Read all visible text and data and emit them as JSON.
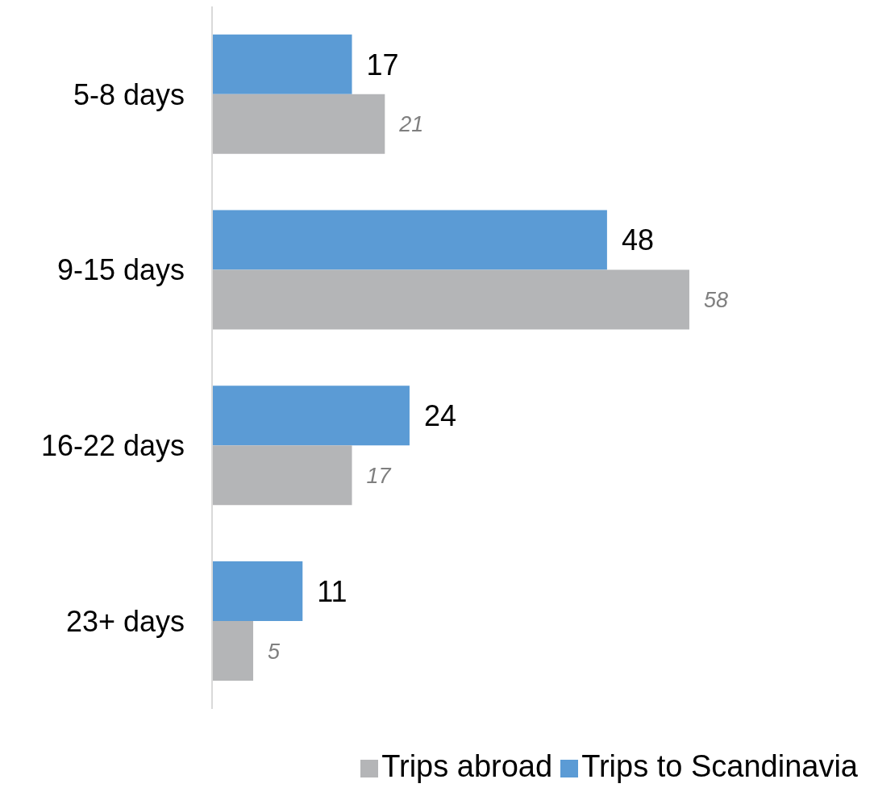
{
  "chart_data": {
    "type": "bar",
    "orientation": "horizontal",
    "categories": [
      "5-8 days",
      "9-15 days",
      "16-22 days",
      "23+ days"
    ],
    "series": [
      {
        "name": "Trips to Scandinavia",
        "color": "#5b9bd5",
        "values": [
          17,
          48,
          24,
          11
        ]
      },
      {
        "name": "Trips abroad",
        "color": "#b4b5b7",
        "values": [
          21,
          58,
          17,
          5
        ]
      }
    ],
    "data_labels": true,
    "legend": "bottom right",
    "grid": false
  }
}
